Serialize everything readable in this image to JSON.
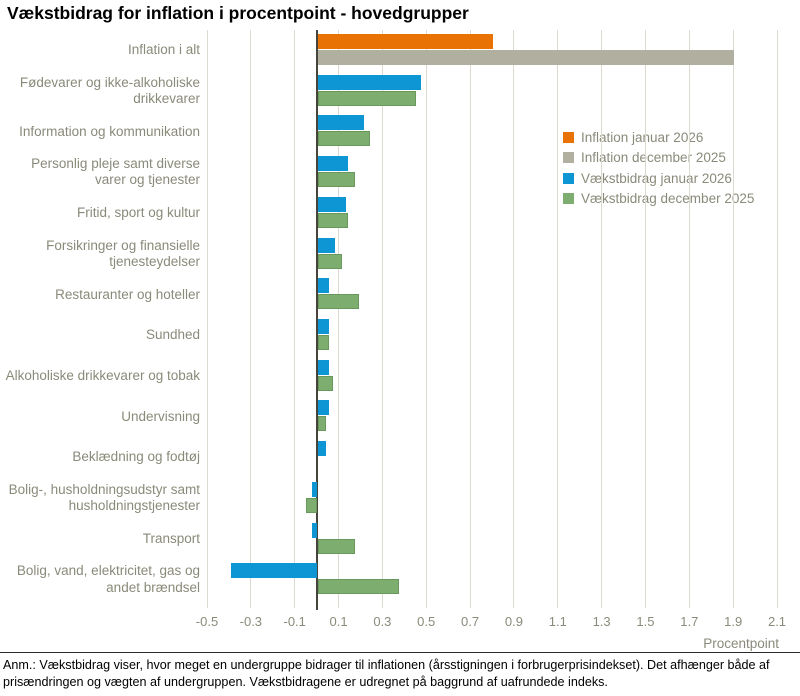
{
  "title": "Vækstbidrag for inflation i procentpoint - hovedgrupper",
  "footnote": "Anm.: Vækstbidrag viser, hvor meget en undergruppe bidrager til inflationen (årsstigningen i forbrugerprisindekset). Det afhænger både af prisændringen og vægten af undergruppen. Vækstbidragene er udregnet på baggrund af uafrundede indeks.",
  "chart_data": {
    "type": "bar",
    "orientation": "horizontal",
    "title": "Vækstbidrag for inflation i procentpoint - hovedgrupper",
    "xlabel": "Procentpoint",
    "xlim": [
      -0.5,
      2.1
    ],
    "xticks": [
      -0.5,
      -0.3,
      -0.1,
      0.1,
      0.3,
      0.5,
      0.7,
      0.9,
      1.1,
      1.3,
      1.5,
      1.7,
      1.9,
      2.1
    ],
    "grid": "vertical",
    "legend_position": "inside-upper-right",
    "legend": [
      {
        "label": "Inflation januar 2026",
        "color": "#e97204"
      },
      {
        "label": "Inflation december 2025",
        "color": "#b1af9f"
      },
      {
        "label": "Vækstbidrag januar 2026",
        "color": "#0e95d4"
      },
      {
        "label": "Vækstbidrag december 2025",
        "color": "#7ead70"
      }
    ],
    "rows": [
      {
        "category": "Inflation i alt",
        "bars": [
          {
            "series": "Inflation januar 2026",
            "value": 0.8
          },
          {
            "series": "Inflation december 2025",
            "value": 1.9
          }
        ]
      },
      {
        "category": "Fødevarer og ikke-alkoholiske drikkevarer",
        "bars": [
          {
            "series": "Vækstbidrag januar 2026",
            "value": 0.47
          },
          {
            "series": "Vækstbidrag december 2025",
            "value": 0.45
          }
        ]
      },
      {
        "category": "Information og kommunikation",
        "bars": [
          {
            "series": "Vækstbidrag januar 2026",
            "value": 0.21
          },
          {
            "series": "Vækstbidrag december 2025",
            "value": 0.24
          }
        ]
      },
      {
        "category": "Personlig pleje samt diverse varer og tjenester",
        "bars": [
          {
            "series": "Vækstbidrag januar 2026",
            "value": 0.14
          },
          {
            "series": "Vækstbidrag december 2025",
            "value": 0.17
          }
        ]
      },
      {
        "category": "Fritid, sport og kultur",
        "bars": [
          {
            "series": "Vækstbidrag januar 2026",
            "value": 0.13
          },
          {
            "series": "Vækstbidrag december 2025",
            "value": 0.14
          }
        ]
      },
      {
        "category": "Forsikringer og finansielle tjenesteydelser",
        "bars": [
          {
            "series": "Vækstbidrag januar 2026",
            "value": 0.08
          },
          {
            "series": "Vækstbidrag december 2025",
            "value": 0.11
          }
        ]
      },
      {
        "category": "Restauranter og hoteller",
        "bars": [
          {
            "series": "Vækstbidrag januar 2026",
            "value": 0.05
          },
          {
            "series": "Vækstbidrag december 2025",
            "value": 0.19
          }
        ]
      },
      {
        "category": "Sundhed",
        "bars": [
          {
            "series": "Vækstbidrag januar 2026",
            "value": 0.05
          },
          {
            "series": "Vækstbidrag december 2025",
            "value": 0.05
          }
        ]
      },
      {
        "category": "Alkoholiske drikkevarer og tobak",
        "bars": [
          {
            "series": "Vækstbidrag januar 2026",
            "value": 0.05
          },
          {
            "series": "Vækstbidrag december 2025",
            "value": 0.07
          }
        ]
      },
      {
        "category": "Undervisning",
        "bars": [
          {
            "series": "Vækstbidrag januar 2026",
            "value": 0.05
          },
          {
            "series": "Vækstbidrag december 2025",
            "value": 0.04
          }
        ]
      },
      {
        "category": "Beklædning og fodtøj",
        "bars": [
          {
            "series": "Vækstbidrag januar 2026",
            "value": 0.04
          },
          {
            "series": "Vækstbidrag december 2025",
            "value": 0.0
          }
        ]
      },
      {
        "category": "Bolig-, husholdningsudstyr samt husholdningstjenester",
        "bars": [
          {
            "series": "Vækstbidrag januar 2026",
            "value": -0.02
          },
          {
            "series": "Vækstbidrag december 2025",
            "value": -0.05
          }
        ]
      },
      {
        "category": "Transport",
        "bars": [
          {
            "series": "Vækstbidrag januar 2026",
            "value": -0.02
          },
          {
            "series": "Vækstbidrag december 2025",
            "value": 0.17
          }
        ]
      },
      {
        "category": "Bolig, vand, elektricitet, gas og andet brændsel",
        "bars": [
          {
            "series": "Vækstbidrag januar 2026",
            "value": -0.39
          },
          {
            "series": "Vækstbidrag december 2025",
            "value": 0.37
          }
        ]
      }
    ]
  },
  "colors": {
    "gridline": "#dcdacf",
    "zero_axis": "#45453b",
    "label_text": "#8a8a7a",
    "title_text": "#000000"
  }
}
